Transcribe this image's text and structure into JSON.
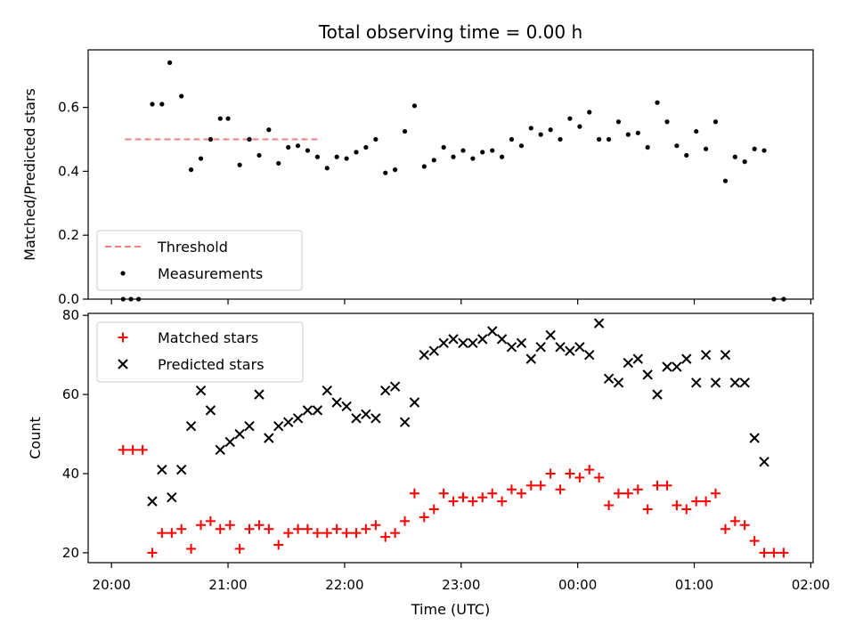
{
  "chart_data": [
    {
      "type": "scatter",
      "title": "Total observing time = 0.00 h",
      "xlabel": "",
      "ylabel": "Matched/Predicted stars",
      "ylim": [
        0,
        0.78
      ],
      "yticks": [
        "0.0",
        "0.2",
        "0.4",
        "0.6"
      ],
      "ytick_values": [
        0,
        0.2,
        0.4,
        0.6
      ],
      "legend_position": "lower-left",
      "threshold": {
        "name": "Threshold",
        "value": 0.5,
        "x_start": 0.117,
        "x_end": 1.8,
        "color": "#f08080"
      },
      "series": [
        {
          "name": "Measurements",
          "color": "#000000",
          "x": [
            0.1,
            0.167,
            0.233,
            0.35,
            0.433,
            0.5,
            0.6,
            0.683,
            0.767,
            0.85,
            0.933,
            1.0,
            1.1,
            1.183,
            1.267,
            1.35,
            1.433,
            1.517,
            1.6,
            1.683,
            1.767,
            1.85,
            1.933,
            2.017,
            2.1,
            2.183,
            2.267,
            2.35,
            2.433,
            2.517,
            2.6,
            2.683,
            2.767,
            2.85,
            2.933,
            3.017,
            3.1,
            3.183,
            3.267,
            3.35,
            3.433,
            3.517,
            3.6,
            3.683,
            3.767,
            3.85,
            3.933,
            4.017,
            4.1,
            4.183,
            4.267,
            4.35,
            4.433,
            4.517,
            4.6,
            4.683,
            4.767,
            4.85,
            4.933,
            5.017,
            5.1,
            5.183,
            5.267,
            5.35,
            5.433,
            5.517,
            5.6,
            5.683,
            5.767
          ],
          "y": [
            0.0,
            0.0,
            0.0,
            0.61,
            0.61,
            0.74,
            0.635,
            0.405,
            0.44,
            0.5,
            0.565,
            0.565,
            0.42,
            0.5,
            0.45,
            0.53,
            0.425,
            0.475,
            0.48,
            0.465,
            0.445,
            0.41,
            0.445,
            0.44,
            0.46,
            0.475,
            0.5,
            0.395,
            0.405,
            0.525,
            0.605,
            0.415,
            0.435,
            0.475,
            0.445,
            0.465,
            0.44,
            0.46,
            0.465,
            0.445,
            0.5,
            0.48,
            0.535,
            0.515,
            0.53,
            0.5,
            0.565,
            0.54,
            0.585,
            0.5,
            0.5,
            0.555,
            0.515,
            0.52,
            0.475,
            0.615,
            0.555,
            0.48,
            0.45,
            0.525,
            0.47,
            0.555,
            0.37,
            0.445,
            0.43,
            0.47,
            0.465,
            0.0,
            0.0
          ]
        }
      ]
    },
    {
      "type": "scatter",
      "title": "",
      "xlabel": "Time (UTC)",
      "ylabel": "Count",
      "xlim": [
        -0.2,
        6.02
      ],
      "ylim": [
        17.5,
        80.5
      ],
      "xticks": [
        "20:00",
        "21:00",
        "22:00",
        "23:00",
        "00:00",
        "01:00",
        "02:00"
      ],
      "xtick_values": [
        0,
        1,
        2,
        3,
        4,
        5,
        6
      ],
      "yticks": [
        "20",
        "40",
        "60",
        "80"
      ],
      "ytick_values": [
        20,
        40,
        60,
        80
      ],
      "legend_position": "upper-left",
      "series": [
        {
          "name": "Matched stars",
          "color": "#ff0000",
          "marker": "plus",
          "x": [
            0.1,
            0.183,
            0.267,
            0.35,
            0.433,
            0.517,
            0.6,
            0.683,
            0.767,
            0.85,
            0.933,
            1.017,
            1.1,
            1.183,
            1.267,
            1.35,
            1.433,
            1.517,
            1.6,
            1.683,
            1.767,
            1.85,
            1.933,
            2.017,
            2.1,
            2.183,
            2.267,
            2.35,
            2.433,
            2.517,
            2.6,
            2.683,
            2.767,
            2.85,
            2.933,
            3.017,
            3.1,
            3.183,
            3.267,
            3.35,
            3.433,
            3.517,
            3.6,
            3.683,
            3.767,
            3.85,
            3.933,
            4.017,
            4.1,
            4.183,
            4.267,
            4.35,
            4.433,
            4.517,
            4.6,
            4.683,
            4.767,
            4.85,
            4.933,
            5.017,
            5.1,
            5.183,
            5.267,
            5.35,
            5.433,
            5.517,
            5.6,
            5.683,
            5.767
          ],
          "y": [
            46,
            46,
            46,
            20,
            25,
            25,
            26,
            21,
            27,
            28,
            26,
            27,
            21,
            26,
            27,
            26,
            22,
            25,
            26,
            26,
            25,
            25,
            26,
            25,
            25,
            26,
            27,
            24,
            25,
            28,
            35,
            29,
            31,
            35,
            33,
            34,
            33,
            34,
            35,
            33,
            36,
            35,
            37,
            37,
            40,
            36,
            40,
            39,
            41,
            39,
            32,
            35,
            35,
            36,
            31,
            37,
            37,
            32,
            31,
            33,
            33,
            35,
            26,
            28,
            27,
            23,
            20,
            20,
            20
          ]
        },
        {
          "name": "Predicted stars",
          "color": "#000000",
          "marker": "x",
          "x": [
            0.35,
            0.433,
            0.517,
            0.6,
            0.683,
            0.767,
            0.85,
            0.933,
            1.017,
            1.1,
            1.183,
            1.267,
            1.35,
            1.433,
            1.517,
            1.6,
            1.683,
            1.767,
            1.85,
            1.933,
            2.017,
            2.1,
            2.183,
            2.267,
            2.35,
            2.433,
            2.517,
            2.6,
            2.683,
            2.767,
            2.85,
            2.933,
            3.017,
            3.1,
            3.183,
            3.267,
            3.35,
            3.433,
            3.517,
            3.6,
            3.683,
            3.767,
            3.85,
            3.933,
            4.017,
            4.1,
            4.183,
            4.267,
            4.35,
            4.433,
            4.517,
            4.6,
            4.683,
            4.767,
            4.85,
            4.933,
            5.017,
            5.1,
            5.183,
            5.267,
            5.35,
            5.433,
            5.517,
            5.6
          ],
          "y": [
            33,
            41,
            34,
            41,
            52,
            61,
            56,
            46,
            48,
            50,
            52,
            60,
            49,
            52,
            53,
            54,
            56,
            56,
            61,
            58,
            57,
            54,
            55,
            54,
            61,
            62,
            53,
            58,
            70,
            71,
            73,
            74,
            73,
            73,
            74,
            76,
            74,
            72,
            73,
            69,
            72,
            75,
            72,
            71,
            72,
            70,
            78,
            64,
            63,
            68,
            69,
            65,
            60,
            67,
            67,
            69,
            63,
            70,
            63,
            70,
            63,
            63,
            49,
            43
          ]
        }
      ]
    }
  ]
}
